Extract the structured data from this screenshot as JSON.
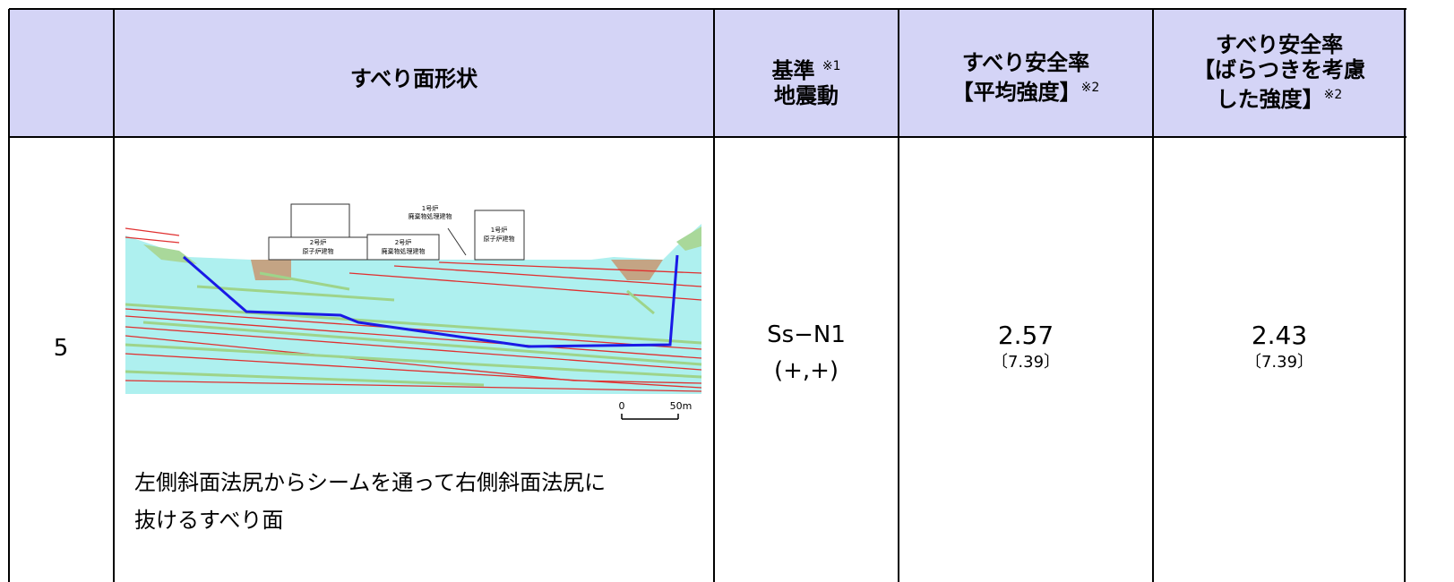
{
  "table": {
    "header": {
      "shape": "すべり面形状",
      "motion": {
        "lines": [
          "基準",
          "地震動"
        ],
        "note": "※1"
      },
      "fs_mean": {
        "lines": [
          "すべり安全率",
          "【平均強度】"
        ],
        "note": "※2"
      },
      "fs_var": {
        "lines": [
          "すべり安全率",
          "【ばらつきを考慮",
          "した強度】"
        ],
        "note": "※2"
      }
    },
    "rows": [
      {
        "no": "5",
        "figure": {
          "labels": [
            [
              "1号炉",
              "廃棄物処理建物"
            ],
            [
              "2号炉",
              "原子炉建物"
            ],
            [
              "2号炉",
              "廃棄物処理建物"
            ],
            [
              "1号炉",
              "原子炉建物"
            ]
          ],
          "scale": [
            "0",
            "50m"
          ]
        },
        "description": [
          "左側斜面法尻からシームを通って右側斜面法尻に",
          "抜けるすべり面"
        ],
        "motion": [
          "Ss−N1",
          "(+,+)"
        ],
        "fs_mean": {
          "value": "2.57",
          "sub": "〔7.39〕"
        },
        "fs_var": {
          "value": "2.43",
          "sub": "〔7.39〕"
        }
      }
    ]
  }
}
